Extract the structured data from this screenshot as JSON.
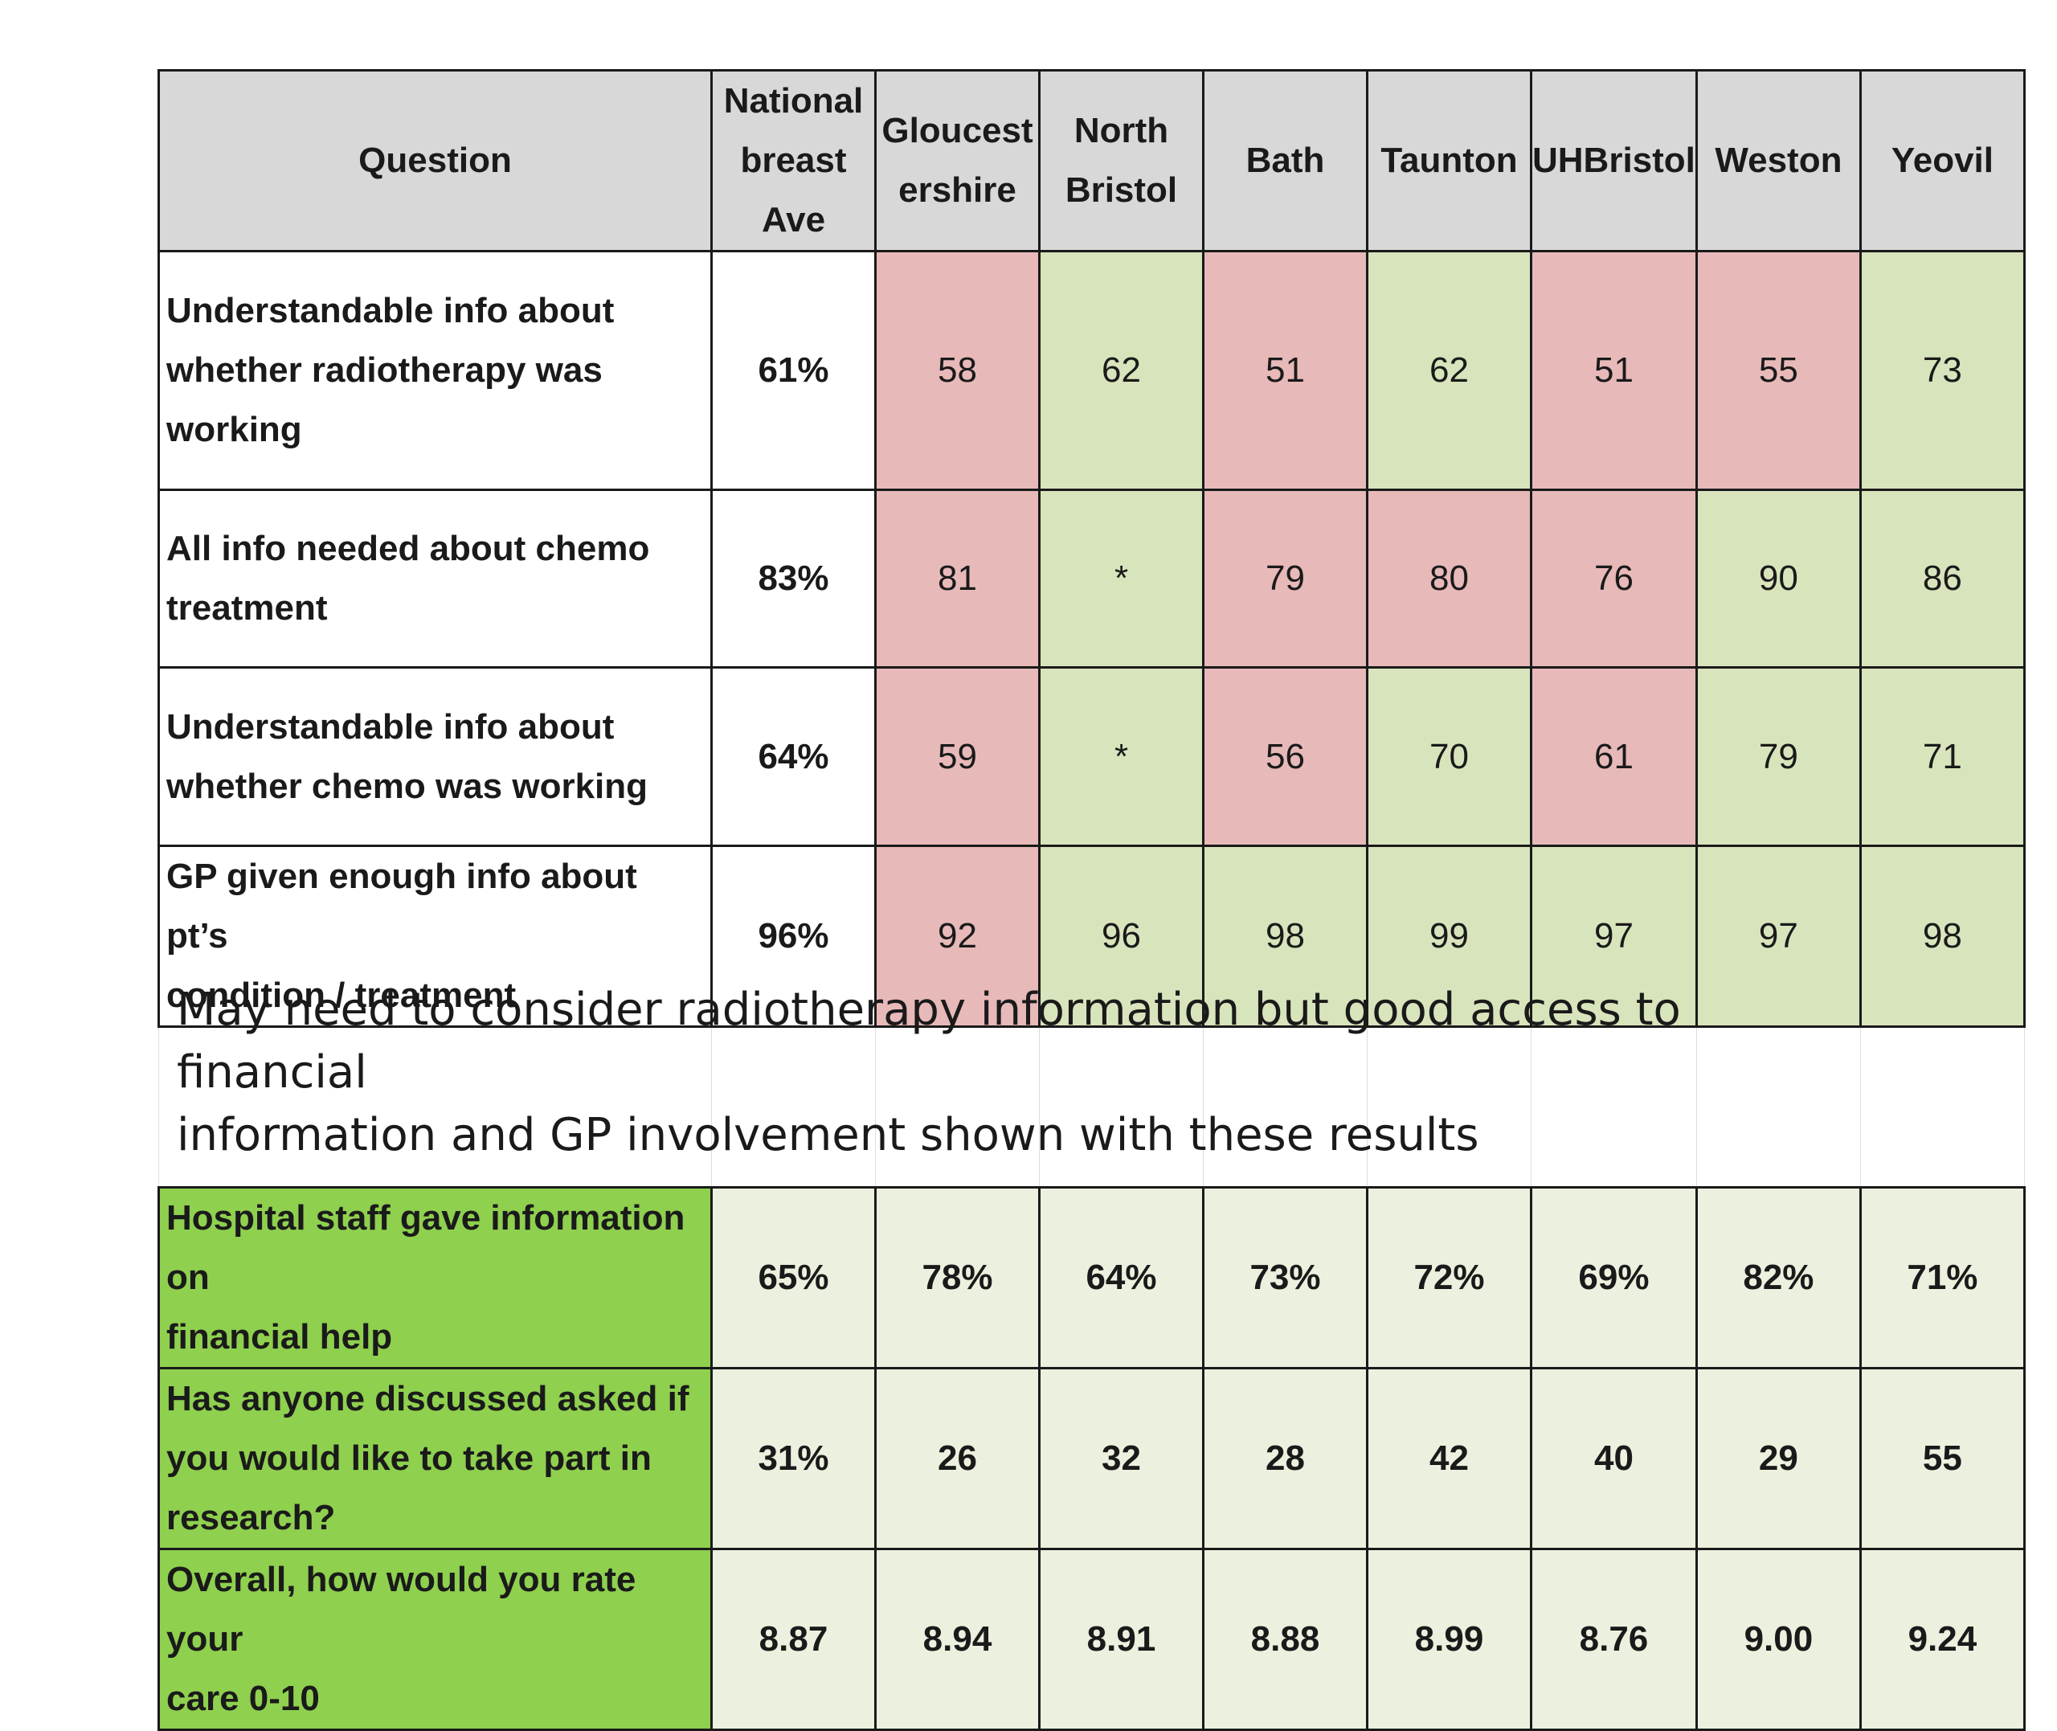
{
  "headers": [
    "Question",
    "National breast Ave",
    "Gloucest ershire",
    "North Bristol",
    "Bath",
    "Taunton",
    "UHBristol",
    "Weston",
    "Yeovil"
  ],
  "header_lines": [
    [
      "Question"
    ],
    [
      "National",
      "breast",
      "Ave"
    ],
    [
      "Gloucest",
      "ershire"
    ],
    [
      "North",
      "Bristol"
    ],
    [
      "Bath"
    ],
    [
      "Taunton"
    ],
    [
      "UHBristol"
    ],
    [
      "Weston"
    ],
    [
      "Yeovil"
    ]
  ],
  "colors": {
    "below_average": "#e8b9b9",
    "at_or_above_average": "#d8e4bc",
    "header_bg": "#d8d8d8",
    "green_label": "#8fd04f",
    "pale_green": "#ebf1de"
  },
  "rows_top": [
    {
      "question": "Understandable info about whether radiotherapy was working",
      "question_lines": [
        "Understandable info about",
        "whether radiotherapy was",
        "working"
      ],
      "national": "61%",
      "values": [
        "58",
        "62",
        "51",
        "62",
        "51",
        "55",
        "73"
      ],
      "status": [
        "red",
        "green",
        "red",
        "green",
        "red",
        "red",
        "green"
      ]
    },
    {
      "question": "All info needed about chemo treatment",
      "question_lines": [
        "All info needed about chemo",
        "treatment"
      ],
      "national": "83%",
      "values": [
        "81",
        "*",
        "79",
        "80",
        "76",
        "90",
        "86"
      ],
      "status": [
        "red",
        "green",
        "red",
        "red",
        "red",
        "green",
        "green"
      ]
    },
    {
      "question": "Understandable info about whether chemo was working",
      "question_lines": [
        "Understandable info about",
        "whether chemo was working"
      ],
      "national": "64%",
      "values": [
        "59",
        "*",
        "56",
        "70",
        "61",
        "79",
        "71"
      ],
      "status": [
        "red",
        "green",
        "red",
        "green",
        "red",
        "green",
        "green"
      ]
    },
    {
      "question": "GP given enough info about pt’s condition / treatment",
      "question_lines": [
        "GP given enough info about pt’s",
        "condition / treatment"
      ],
      "national": "96%",
      "values": [
        "92",
        "96",
        "98",
        "99",
        "97",
        "97",
        "98"
      ],
      "status": [
        "red",
        "green",
        "green",
        "green",
        "green",
        "green",
        "green"
      ]
    }
  ],
  "note": {
    "line1": "May need to consider radiotherapy information but good access to financial",
    "line2": "information and  GP involvement shown with these results"
  },
  "rows_bottom": [
    {
      "question": "Hospital staff gave information on financial help",
      "question_lines": [
        "Hospital staff gave information on",
        "financial help"
      ],
      "national": "65%",
      "values": [
        "78%",
        "64%",
        "73%",
        "72%",
        "69%",
        "82%",
        "71%"
      ]
    },
    {
      "question": "Has anyone discussed asked if you would like to take part in research?",
      "question_lines": [
        "Has anyone discussed asked if",
        "you would like to take part in",
        "research?"
      ],
      "national": "31%",
      "values": [
        "26",
        "32",
        "28",
        "42",
        "40",
        "29",
        "55"
      ]
    },
    {
      "question": "Overall, how would you rate your care 0-10",
      "question_lines": [
        "Overall, how would you rate your",
        "care 0-10"
      ],
      "national": "8.87",
      "values": [
        "8.94",
        "8.91",
        "8.88",
        "8.99",
        "8.76",
        "9.00",
        "9.24"
      ]
    }
  ]
}
